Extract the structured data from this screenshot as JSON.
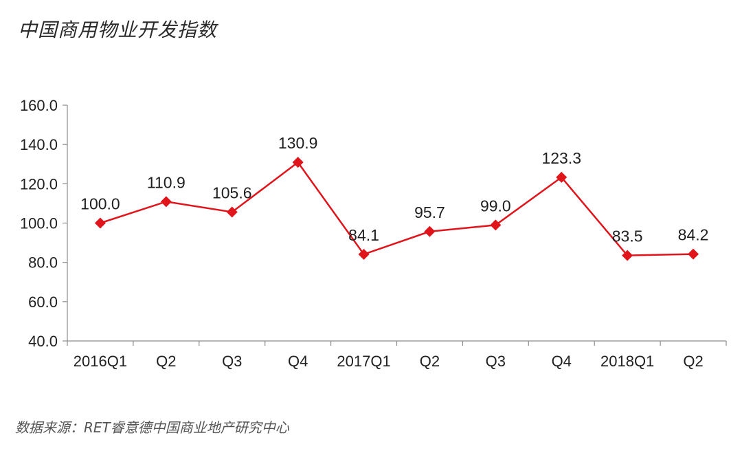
{
  "title": "中国商用物业开发指数",
  "source": "数据来源：RET睿意德中国商业地产研究中心",
  "colors": {
    "line": "#e0141b",
    "marker": "#e0141b",
    "axis": "#8c8c8c",
    "text": "#1f1f1f"
  },
  "chart_data": {
    "type": "line",
    "title": "中国商用物业开发指数",
    "categories": [
      "2016Q1",
      "Q2",
      "Q3",
      "Q4",
      "2017Q1",
      "Q2",
      "Q3",
      "Q4",
      "2018Q1",
      "Q2"
    ],
    "series": [
      {
        "values": [
          100.0,
          110.9,
          105.6,
          130.9,
          84.1,
          95.7,
          99.0,
          123.3,
          83.5,
          84.2
        ],
        "data_labels": [
          "100.0",
          "110.9",
          "105.6",
          "130.9",
          "84.1",
          "95.7",
          "99.0",
          "123.3",
          "83.5",
          "84.2"
        ],
        "marker": "diamond"
      }
    ],
    "ylim": [
      40,
      160
    ],
    "yticks": [
      "40.0",
      "60.0",
      "80.0",
      "100.0",
      "120.0",
      "140.0",
      "160.0"
    ],
    "ytick_values": [
      40,
      60,
      80,
      100,
      120,
      140,
      160
    ],
    "grid": false,
    "legend": "none",
    "xlabel": "",
    "ylabel": ""
  }
}
